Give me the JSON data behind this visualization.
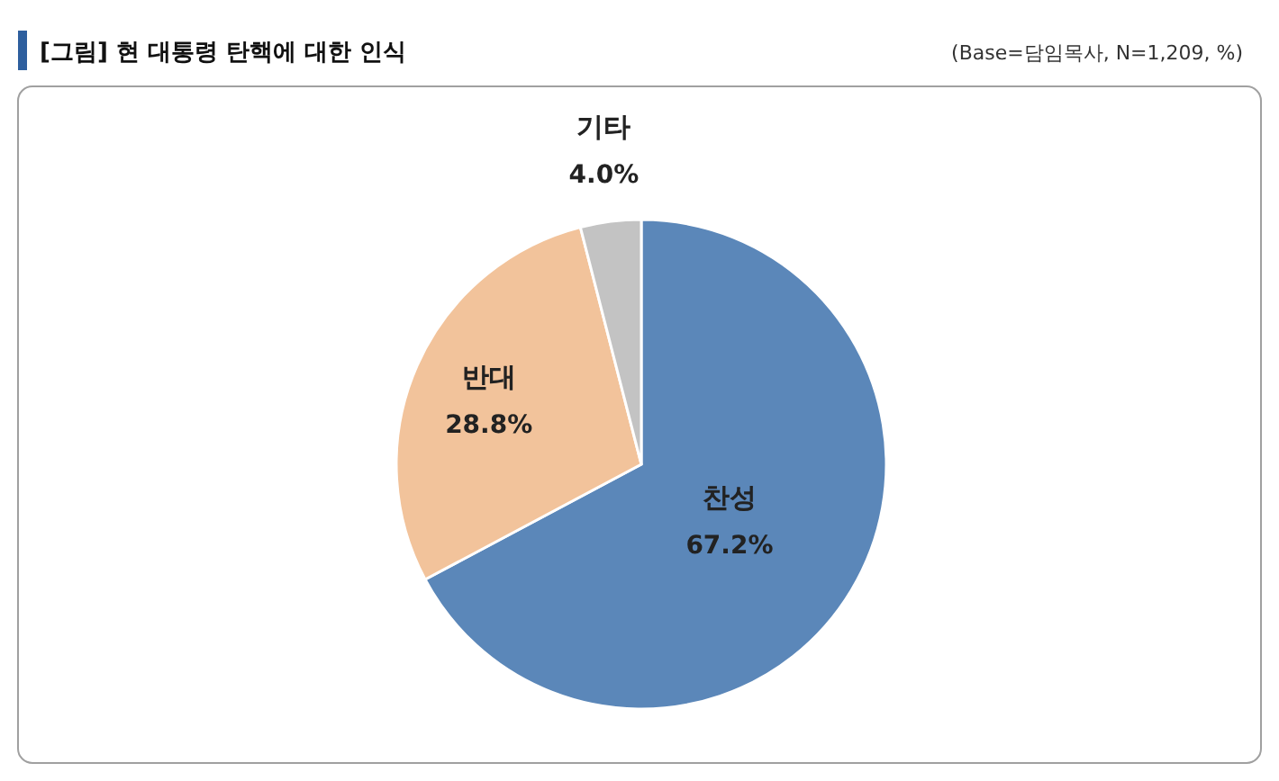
{
  "chart_data": {
    "type": "pie",
    "title": "[그림] 현 대통령 탄핵에 대한 인식",
    "annotations": [
      "(Base=담임목사, N=1,209, %)"
    ],
    "categories": [
      "찬성",
      "반대",
      "기타"
    ],
    "values": [
      67.2,
      28.8,
      4.0
    ],
    "value_labels": [
      "67.2%",
      "28.8%",
      "4.0%"
    ],
    "colors": [
      "#5b87b9",
      "#f2c39b",
      "#c3c3c3"
    ]
  }
}
